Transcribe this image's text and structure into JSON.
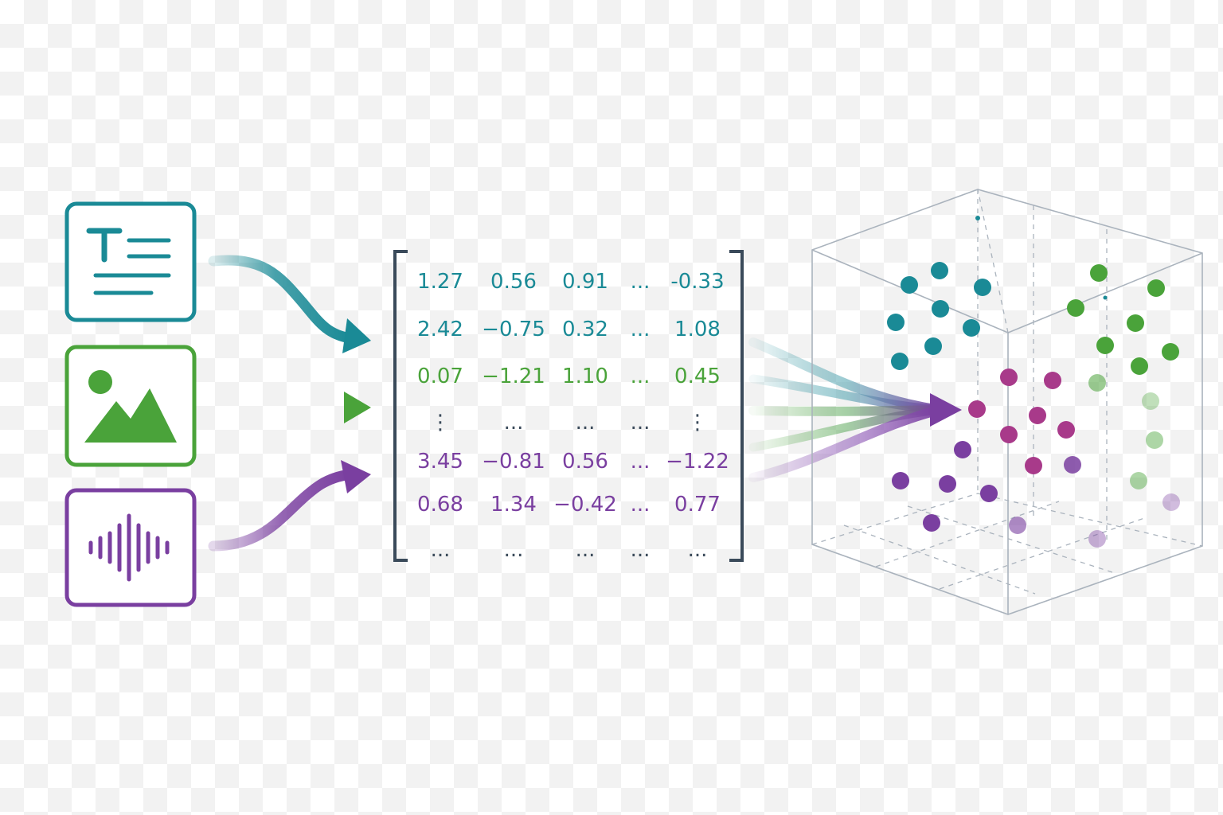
{
  "colors": {
    "text": "#1a8a96",
    "image": "#4aa33a",
    "audio": "#7a3fa0",
    "bracket": "#3a4a5a",
    "cube": "#aab3bd",
    "magenta": "#a83a8a"
  },
  "inputs": [
    {
      "icon": "text-document-icon",
      "color": "#1a8a96"
    },
    {
      "icon": "image-picture-icon",
      "color": "#4aa33a"
    },
    {
      "icon": "audio-waveform-icon",
      "color": "#7a3fa0"
    }
  ],
  "matrix": {
    "rows": [
      {
        "color": "#1a8a96",
        "cells": [
          "1.27",
          "0.56",
          "0.91",
          "...",
          "-0.33"
        ]
      },
      {
        "color": "#1a8a96",
        "cells": [
          "2.42",
          "−0.75",
          "0.32",
          "...",
          "1.08"
        ]
      },
      {
        "color": "#4aa33a",
        "cells": [
          "0.07",
          "−1.21",
          "1.10",
          "...",
          "0.45"
        ]
      },
      {
        "color": "#3a4a5a",
        "cells": [
          "⋮",
          "...",
          "...",
          "...",
          "⋮"
        ]
      },
      {
        "color": "#7a3fa0",
        "cells": [
          "3.45",
          "−0.81",
          "0.56",
          "...",
          "−1.22"
        ]
      },
      {
        "color": "#7a3fa0",
        "cells": [
          "0.68",
          "1.34",
          "−0.42",
          "...",
          "0.77"
        ]
      },
      {
        "color": "#3a4a5a",
        "cells": [
          "...",
          "...",
          "...",
          "...",
          "..."
        ]
      }
    ]
  },
  "embedding_space": {
    "clusters": [
      {
        "name": "teal",
        "color": "#1a8a96",
        "count": 9
      },
      {
        "name": "green",
        "color": "#4aa33a",
        "count": 12
      },
      {
        "name": "magenta",
        "color": "#a83a8a",
        "count": 6
      },
      {
        "name": "purple",
        "color": "#7a3fa0",
        "count": 12
      }
    ]
  }
}
